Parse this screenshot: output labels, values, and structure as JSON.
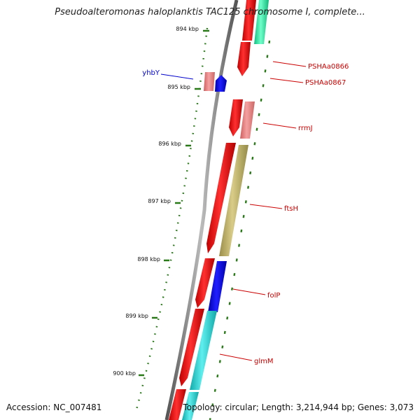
{
  "title": "Pseudoalteromonas haloplanktis TAC125 chromosome I, complete...",
  "footer": {
    "accession": "Accession: NC_007481",
    "summary": "Topology: circular; Length: 3,214,944 bp; Genes: 3,073"
  },
  "ticks": [
    "894 kbp",
    "895 kbp",
    "896 kbp",
    "897 kbp",
    "898 kbp",
    "899 kbp",
    "900 kbp"
  ],
  "genes": [
    {
      "label": "yhbY",
      "color": "#0000cc"
    },
    {
      "label": "PSHAa0866",
      "color": "#cc0000"
    },
    {
      "label": "PSHAa0867",
      "color": "#cc0000"
    },
    {
      "label": "rrmJ",
      "color": "#cc0000"
    },
    {
      "label": "ftsH",
      "color": "#cc0000"
    },
    {
      "label": "folP",
      "color": "#cc0000"
    },
    {
      "label": "glmM",
      "color": "#cc0000"
    }
  ]
}
